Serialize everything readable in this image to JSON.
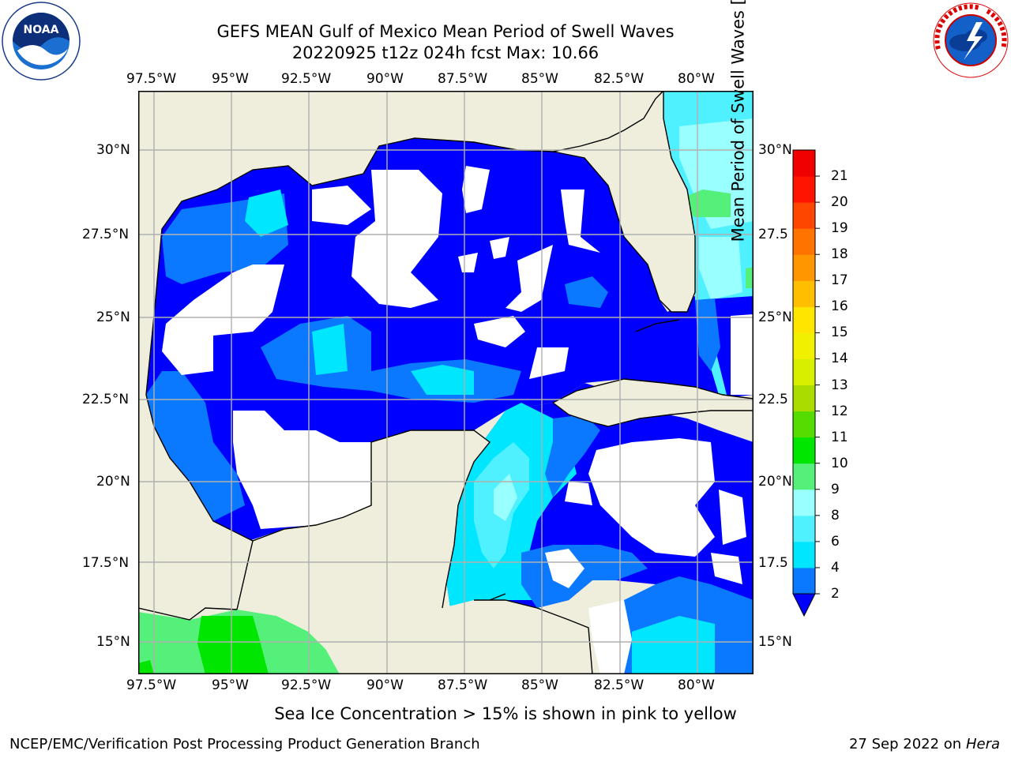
{
  "header": {
    "title_line1": "GEFS MEAN Gulf of Mexico Mean Period of Swell Waves",
    "title_line2": "20220925 t12z 024h fcst   Max: 10.66"
  },
  "logos": {
    "left": {
      "name": "NOAA",
      "ring_text": "NATIONAL OCEANIC AND ATMOSPHERIC ADMINISTRATION",
      "bottom_text": "U.S. DEPARTMENT OF COMMERCE"
    },
    "right": {
      "ring_text": "NATIONAL WEATHER SERVICE"
    }
  },
  "map": {
    "lon_labels": [
      "97.5°W",
      "95°W",
      "92.5°W",
      "90°W",
      "87.5°W",
      "85°W",
      "82.5°W",
      "80°W"
    ],
    "lat_labels_left": [
      "30°N",
      "27.5°N",
      "25°N",
      "22.5°N",
      "20°N",
      "17.5°N",
      "15°N"
    ],
    "lat_labels_right": [
      "30°N",
      "27.5",
      "25°N",
      "22.5",
      "20°N",
      "17.5",
      "15°N"
    ],
    "colors": {
      "land": "#efeedc",
      "grid": "#b0b0b0",
      "no_data": "#ffffff"
    }
  },
  "colorbar": {
    "title": "Mean Period of Swell Waves [s]",
    "tick_labels": [
      "2",
      "4",
      "6",
      "8",
      "9",
      "10",
      "11",
      "12",
      "13",
      "14",
      "15",
      "16",
      "17",
      "18",
      "19",
      "20",
      "21"
    ],
    "colors": [
      "#0000ff",
      "#0a78ff",
      "#00e6ff",
      "#4ff0ff",
      "#99ffff",
      "#55f07a",
      "#00e600",
      "#55dc00",
      "#aadc00",
      "#d8f000",
      "#f0f000",
      "#ffe600",
      "#ffbe00",
      "#ff9600",
      "#ff7300",
      "#ff4600",
      "#ff1400",
      "#f00000"
    ]
  },
  "footer": {
    "note": "Sea Ice Concentration > 15% is shown in pink to yellow",
    "credit": "NCEP/EMC/Verification Post Processing Product Generation Branch",
    "date": "27 Sep 2022 on",
    "system": "Hera"
  }
}
